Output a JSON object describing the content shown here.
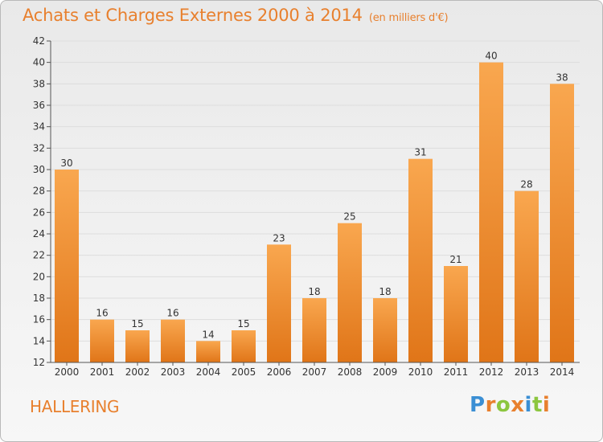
{
  "title": "Achats et Charges Externes 2000 à 2014",
  "unit_note": "(en milliers d'€)",
  "commune": "HALLERING",
  "logo": {
    "letters": [
      "P",
      "r",
      "o",
      "x",
      "i",
      "t",
      "i"
    ],
    "colors": [
      "#3b8fd4",
      "#e8802e",
      "#8cc63f",
      "#e8802e",
      "#3b8fd4",
      "#8cc63f",
      "#e8802e"
    ]
  },
  "colors": {
    "bar_top": "#f9a74f",
    "bar_bottom": "#e07518",
    "text": "#333333",
    "grid": "#dddddd"
  },
  "chart_data": {
    "type": "bar",
    "categories": [
      "2000",
      "2001",
      "2002",
      "2003",
      "2004",
      "2005",
      "2006",
      "2007",
      "2008",
      "2009",
      "2010",
      "2011",
      "2012",
      "2013",
      "2014"
    ],
    "values": [
      30,
      16,
      15,
      16,
      14,
      15,
      23,
      18,
      25,
      18,
      31,
      21,
      40,
      28,
      38
    ],
    "title": "Achats et Charges Externes 2000 à 2014",
    "ylim": [
      12,
      42
    ],
    "yticks": [
      12,
      14,
      16,
      18,
      20,
      22,
      24,
      26,
      28,
      30,
      32,
      34,
      36,
      38,
      40,
      42
    ],
    "grid": true
  }
}
